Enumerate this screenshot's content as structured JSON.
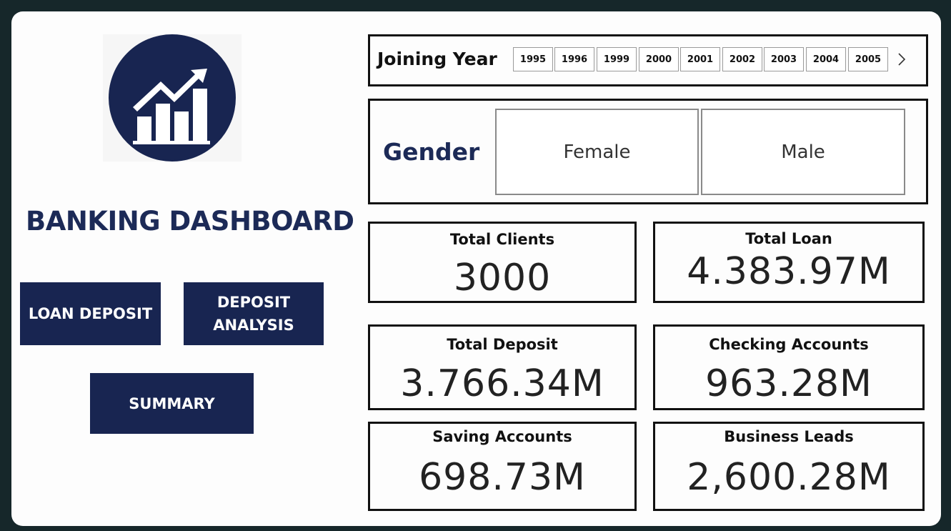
{
  "dashboard": {
    "title": "BANKING DASHBOARD",
    "logo_icon": "chart-growth-icon",
    "brand_color": "#182551"
  },
  "nav": {
    "loan_deposit": "LOAN DEPOSIT",
    "deposit_analysis_line1": "DEPOSIT",
    "deposit_analysis_line2": "ANALYSIS",
    "summary": "SUMMARY"
  },
  "filters": {
    "joining_year": {
      "label": "Joining Year",
      "years": [
        "1995",
        "1996",
        "1999",
        "2000",
        "2001",
        "2002",
        "2003",
        "2004",
        "2005"
      ],
      "next_icon": "chevron-right-icon"
    },
    "gender": {
      "label": "Gender",
      "options": [
        "Female",
        "Male"
      ]
    }
  },
  "kpis": {
    "total_clients": {
      "title": "Total Clients",
      "value": "3000"
    },
    "total_loan": {
      "title": "Total Loan",
      "value": "4.383.97M"
    },
    "total_deposit": {
      "title": "Total Deposit",
      "value": "3.766.34M"
    },
    "checking_accounts": {
      "title": "Checking Accounts",
      "value": "963.28M"
    },
    "saving_accounts": {
      "title": "Saving Accounts",
      "value": "698.73M"
    },
    "business_leads": {
      "title": "Business Leads",
      "value": "2,600.28M"
    }
  }
}
